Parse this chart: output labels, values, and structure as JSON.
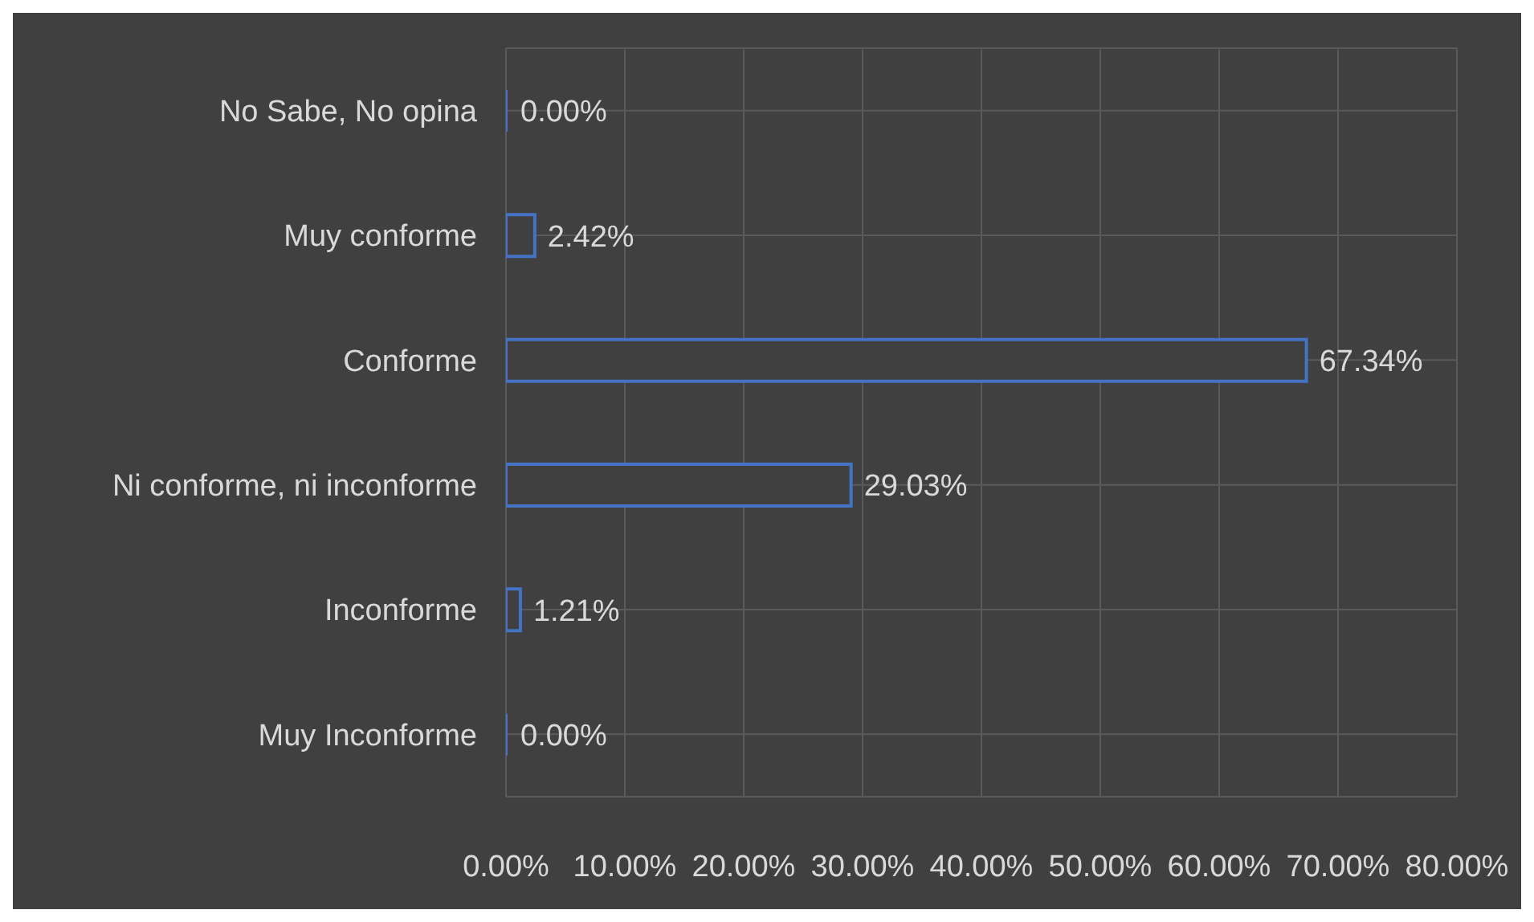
{
  "chart_data": {
    "type": "bar",
    "orientation": "horizontal",
    "categories": [
      "No Sabe, No opina",
      "Muy conforme",
      "Conforme",
      "Ni conforme, ni inconforme",
      "Inconforme",
      "Muy Inconforme"
    ],
    "values": [
      0,
      2.42,
      67.34,
      29.03,
      1.21,
      0
    ],
    "value_labels": [
      "0.00%",
      "2.42%",
      "67.34%",
      "29.03%",
      "1.21%",
      "0.00%"
    ],
    "color": "#4472c4",
    "xlim": [
      0,
      80
    ],
    "xticks": [
      {
        "value": 0,
        "label": "0.00%"
      },
      {
        "value": 10,
        "label": "10.00%"
      },
      {
        "value": 20,
        "label": "20.00%"
      },
      {
        "value": 30,
        "label": "30.00%"
      },
      {
        "value": 40,
        "label": "40.00%"
      },
      {
        "value": 50,
        "label": "50.00%"
      },
      {
        "value": 60,
        "label": "60.00%"
      },
      {
        "value": 70,
        "label": "70.00%"
      },
      {
        "value": 80,
        "label": "80.00%"
      }
    ],
    "grid": true
  }
}
